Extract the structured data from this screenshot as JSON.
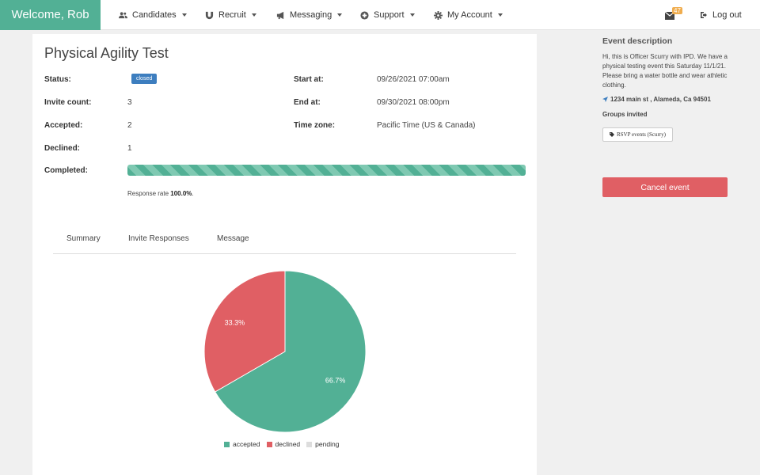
{
  "nav": {
    "brand": "Welcome, Rob",
    "items": [
      {
        "label": "Candidates",
        "icon": "users-icon"
      },
      {
        "label": "Recruit",
        "icon": "magnet-icon"
      },
      {
        "label": "Messaging",
        "icon": "bullhorn-icon"
      },
      {
        "label": "Support",
        "icon": "plus-circle-icon"
      },
      {
        "label": "My Account",
        "icon": "gear-icon"
      }
    ],
    "mail_count": "47",
    "logout": "Log out"
  },
  "event": {
    "title": "Physical Agility Test",
    "status_label": "Status:",
    "status_value": "closed",
    "invite_label": "Invite count:",
    "invite_value": "3",
    "accepted_label": "Accepted:",
    "accepted_value": "2",
    "declined_label": "Declined:",
    "declined_value": "1",
    "completed_label": "Completed:",
    "completed_fraction": 1.0,
    "start_label": "Start at:",
    "start_value": "09/26/2021 07:00am",
    "end_label": "End at:",
    "end_value": "09/30/2021 08:00pm",
    "tz_label": "Time zone:",
    "tz_value": "Pacific Time (US & Canada)",
    "response_prefix": "Response rate ",
    "response_value": "100.0%",
    "response_suffix": "."
  },
  "tabs": [
    "Summary",
    "Invite Responses",
    "Message"
  ],
  "chart_data": {
    "type": "pie",
    "categories": [
      "accepted",
      "declined",
      "pending"
    ],
    "values": [
      2,
      1,
      0
    ],
    "labels": [
      "66.7%",
      "33.3%",
      ""
    ],
    "colors": [
      "#52b095",
      "#e05f64",
      "#dddddd"
    ],
    "legend": "bottom"
  },
  "sidebar": {
    "heading": "Event description",
    "description": "Hi, this is Officer Scurry with IPD. We have a physical testing event this Saturday 11/1/21. Please bring a water bottle and wear athletic clothing.",
    "address": "1234 main st , Alameda, Ca 94501",
    "groups_heading": "Groups invited",
    "group": "RSVP events (Scurry)",
    "cancel": "Cancel event"
  }
}
